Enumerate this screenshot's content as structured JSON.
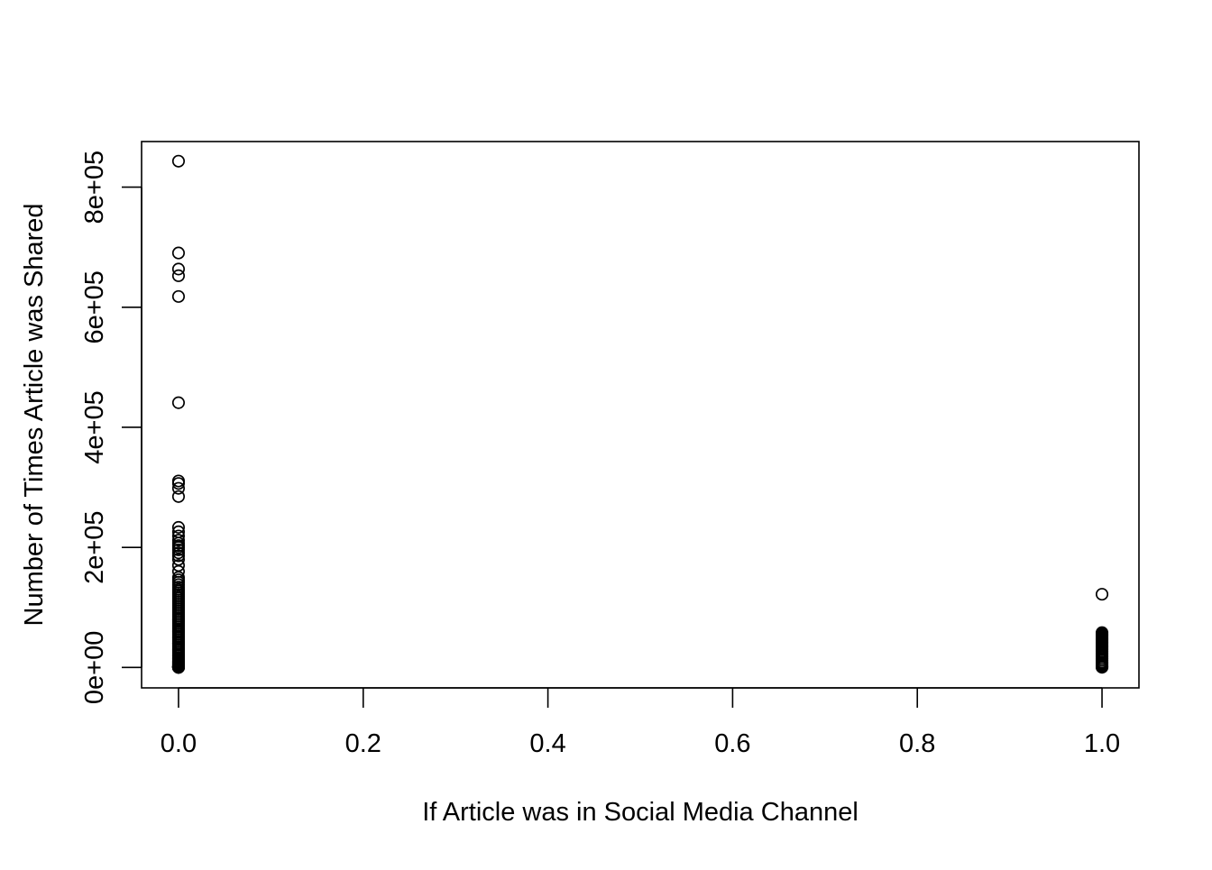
{
  "chart_data": {
    "type": "scatter",
    "title": "",
    "xlabel": "If Article was in Social Media Channel",
    "ylabel": "Number of Times Article was Shared",
    "xlim": [
      -0.04,
      1.04
    ],
    "ylim": [
      -34000,
      876000
    ],
    "x_ticks": [
      {
        "value": 0.0,
        "label": "0.0"
      },
      {
        "value": 0.2,
        "label": "0.2"
      },
      {
        "value": 0.4,
        "label": "0.4"
      },
      {
        "value": 0.6,
        "label": "0.6"
      },
      {
        "value": 0.8,
        "label": "0.8"
      },
      {
        "value": 1.0,
        "label": "1.0"
      }
    ],
    "y_ticks": [
      {
        "value": 0,
        "label": "0e+00"
      },
      {
        "value": 200000,
        "label": "2e+05"
      },
      {
        "value": 400000,
        "label": "4e+05"
      },
      {
        "value": 600000,
        "label": "6e+05"
      },
      {
        "value": 800000,
        "label": "8e+05"
      }
    ],
    "grid": false,
    "legend": "none",
    "marker": "open-circle",
    "colors": {
      "points": "#000000",
      "axes": "#000000",
      "background": "#ffffff"
    },
    "series": [
      {
        "x": [
          0,
          0,
          0,
          0,
          0,
          0,
          0,
          0,
          0,
          0,
          0,
          0,
          0,
          0,
          0,
          0,
          0,
          0,
          0,
          0,
          0,
          0,
          0,
          0,
          0,
          0,
          0,
          0,
          0,
          0,
          0,
          0,
          0,
          0,
          0,
          0,
          0,
          0,
          0,
          0,
          0,
          0,
          0,
          0,
          0,
          0,
          0,
          0,
          0,
          0,
          0,
          0,
          0,
          0,
          0,
          0,
          0,
          0,
          0,
          0,
          0,
          0,
          0,
          0,
          0,
          0,
          0,
          0,
          0,
          0,
          0,
          0,
          0,
          0,
          0,
          0,
          0,
          0,
          0,
          0,
          0,
          0,
          0,
          0,
          0,
          0,
          0,
          0,
          0,
          0,
          0,
          0,
          0,
          0,
          0,
          0,
          0,
          0,
          0,
          0,
          1,
          1,
          1,
          1,
          1,
          1,
          1,
          1,
          1,
          1,
          1,
          1,
          1,
          1,
          1,
          1,
          1,
          1,
          1,
          1,
          1,
          1,
          1,
          1,
          1,
          1,
          1,
          1,
          1
        ],
        "y": [
          843300,
          690400,
          663600,
          652500,
          617900,
          441000,
          310600,
          306500,
          298400,
          284700,
          233400,
          226000,
          219000,
          212000,
          207000,
          203000,
          200000,
          196000,
          191000,
          186000,
          180000,
          170000,
          160000,
          150000,
          146000,
          142000,
          138000,
          134000,
          130000,
          127000,
          124000,
          121000,
          118000,
          115000,
          112000,
          109000,
          106000,
          103000,
          100000,
          97000,
          94000,
          91000,
          88000,
          85000,
          82000,
          79000,
          76000,
          73000,
          70000,
          67000,
          64000,
          61000,
          58000,
          55000,
          52000,
          49000,
          46000,
          43000,
          40000,
          37000,
          34000,
          31000,
          28000,
          25000,
          22000,
          19000,
          16000,
          13000,
          11000,
          9000,
          7000,
          5000,
          3000,
          1500,
          500,
          60000,
          40000,
          20000,
          10000,
          4000,
          2000,
          1000,
          800,
          600,
          400,
          300,
          200,
          100,
          80000,
          50000,
          30000,
          15000,
          8000,
          6000,
          2500,
          1200,
          900,
          700,
          350,
          150,
          122000,
          58000,
          56000,
          54000,
          52000,
          50000,
          48000,
          46000,
          44000,
          42000,
          40000,
          38000,
          36000,
          34000,
          32000,
          30000,
          27000,
          24000,
          21000,
          18000,
          15000,
          12000,
          9000,
          7000,
          5000,
          3000,
          1500,
          800,
          300
        ]
      }
    ]
  }
}
